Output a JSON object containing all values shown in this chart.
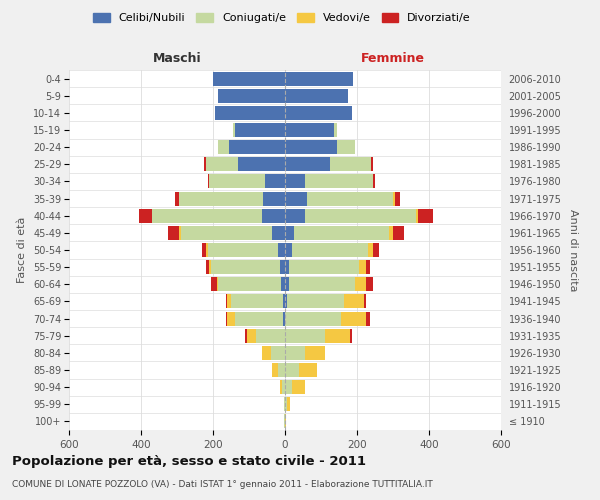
{
  "age_groups": [
    "100+",
    "95-99",
    "90-94",
    "85-89",
    "80-84",
    "75-79",
    "70-74",
    "65-69",
    "60-64",
    "55-59",
    "50-54",
    "45-49",
    "40-44",
    "35-39",
    "30-34",
    "25-29",
    "20-24",
    "15-19",
    "10-14",
    "5-9",
    "0-4"
  ],
  "birth_years": [
    "≤ 1910",
    "1911-1915",
    "1916-1920",
    "1921-1925",
    "1926-1930",
    "1931-1935",
    "1936-1940",
    "1941-1945",
    "1946-1950",
    "1951-1955",
    "1956-1960",
    "1961-1965",
    "1966-1970",
    "1971-1975",
    "1976-1980",
    "1981-1985",
    "1986-1990",
    "1991-1995",
    "1996-2000",
    "2001-2005",
    "2006-2010"
  ],
  "males": {
    "celibe": [
      0,
      0,
      0,
      0,
      0,
      0,
      5,
      5,
      10,
      15,
      20,
      35,
      65,
      60,
      55,
      130,
      155,
      140,
      195,
      185,
      200
    ],
    "coniugato": [
      2,
      2,
      8,
      20,
      40,
      80,
      135,
      145,
      175,
      190,
      195,
      255,
      305,
      235,
      155,
      90,
      30,
      5,
      0,
      0,
      0
    ],
    "vedovo": [
      0,
      2,
      5,
      15,
      25,
      25,
      20,
      10,
      5,
      5,
      5,
      5,
      0,
      0,
      0,
      0,
      0,
      0,
      0,
      0,
      0
    ],
    "divorziato": [
      0,
      0,
      0,
      0,
      0,
      5,
      5,
      5,
      15,
      10,
      10,
      30,
      35,
      10,
      5,
      5,
      0,
      0,
      0,
      0,
      0
    ]
  },
  "females": {
    "nubile": [
      0,
      0,
      0,
      0,
      0,
      0,
      0,
      5,
      10,
      10,
      20,
      25,
      55,
      60,
      55,
      125,
      145,
      135,
      185,
      175,
      190
    ],
    "coniugata": [
      0,
      5,
      20,
      40,
      55,
      110,
      155,
      160,
      185,
      195,
      210,
      265,
      310,
      240,
      190,
      115,
      50,
      10,
      0,
      0,
      0
    ],
    "vedova": [
      2,
      10,
      35,
      50,
      55,
      70,
      70,
      55,
      30,
      20,
      15,
      10,
      5,
      5,
      0,
      0,
      0,
      0,
      0,
      0,
      0
    ],
    "divorziata": [
      0,
      0,
      0,
      0,
      0,
      5,
      10,
      5,
      20,
      10,
      15,
      30,
      40,
      15,
      5,
      5,
      0,
      0,
      0,
      0,
      0
    ]
  },
  "colors": {
    "celibe": "#4c72b0",
    "coniugato": "#c5d9a0",
    "vedovo": "#f5c842",
    "divorziato": "#cc2222"
  },
  "xlim": 600,
  "xticks": [
    -600,
    -400,
    -200,
    0,
    200,
    400,
    600
  ],
  "title": "Popolazione per età, sesso e stato civile - 2011",
  "subtitle": "COMUNE DI LONATE POZZOLO (VA) - Dati ISTAT 1° gennaio 2011 - Elaborazione TUTTITALIA.IT",
  "ylabel_left": "Fasce di età",
  "ylabel_right": "Anni di nascita",
  "maschi_label": "Maschi",
  "femmine_label": "Femmine",
  "bg_color": "#f0f0f0",
  "plot_bg": "#ffffff",
  "grid_color": "#dddddd",
  "legend_labels": [
    "Celibi/Nubili",
    "Coniugati/e",
    "Vedovi/e",
    "Divorziati/e"
  ]
}
